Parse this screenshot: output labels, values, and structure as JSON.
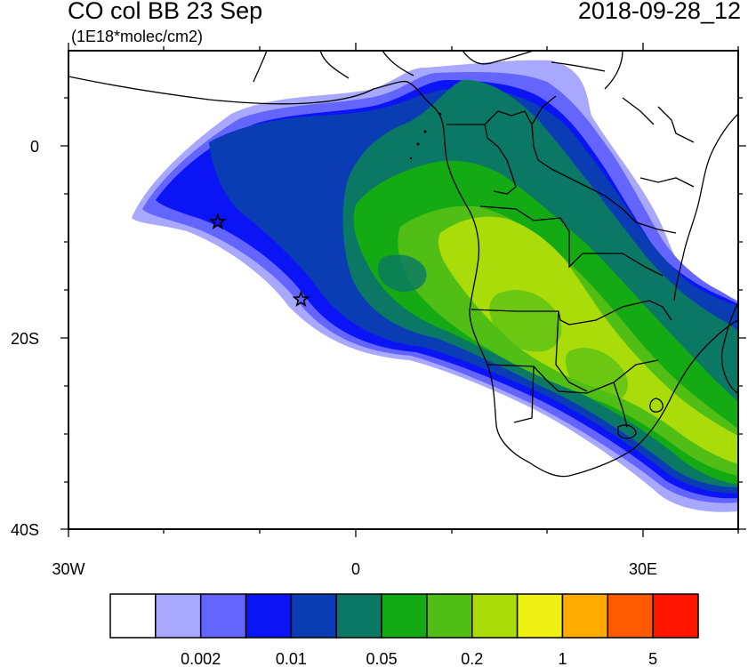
{
  "header": {
    "title": "CO col BB 23 Sep",
    "units": "(1E18*molec/cm2)",
    "datetime": "2018-09-28_12"
  },
  "map": {
    "region": "South Atlantic / Southern Africa",
    "lon_range": [
      -30,
      40
    ],
    "lat_range": [
      -40,
      10
    ],
    "x_tick_labels": [
      "30W",
      "0",
      "30E"
    ],
    "y_tick_labels": [
      "0",
      "20S",
      "40S"
    ],
    "markers": [
      {
        "type": "star",
        "lon": -14.4,
        "lat": -7.9
      },
      {
        "type": "star",
        "lon": -5.7,
        "lat": -16.0
      }
    ]
  },
  "colorbar": {
    "colors": [
      "#ffffff",
      "#a8a8ff",
      "#6464ff",
      "#0a14f5",
      "#0a3cb4",
      "#0a7864",
      "#14aa14",
      "#50be14",
      "#aadc0a",
      "#f0f014",
      "#ffaa00",
      "#ff5a00",
      "#ff1400"
    ],
    "labels": [
      "0.002",
      "0.01",
      "0.05",
      "0.2",
      "1",
      "5"
    ]
  }
}
